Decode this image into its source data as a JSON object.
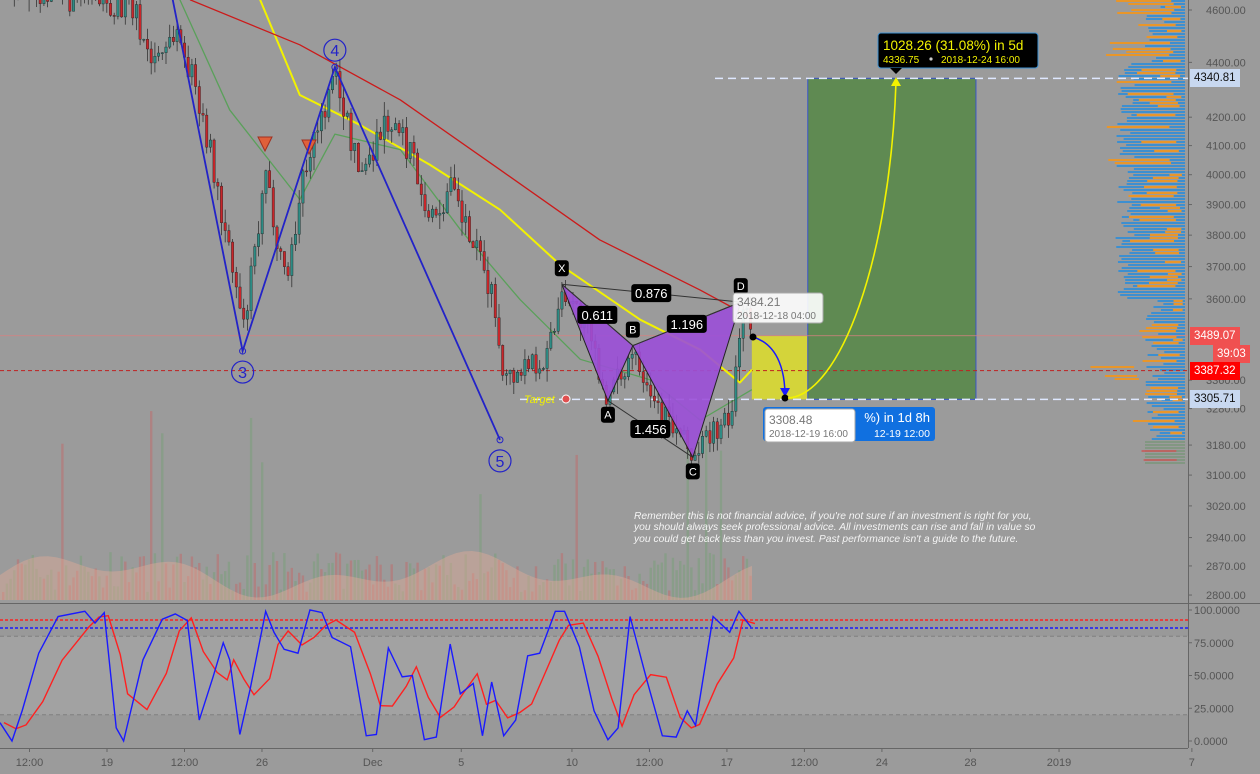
{
  "chart_data": {
    "type": "candlestick",
    "price_axis": {
      "scale": "log",
      "ticks": [
        "4600.00",
        "4400.00",
        "4200.00",
        "4100.00",
        "4000.00",
        "3900.00",
        "3800.00",
        "3700.00",
        "3600.00",
        "3360.00",
        "3280.00",
        "3180.00",
        "3100.00",
        "3020.00",
        "2940.00",
        "2870.00",
        "2800.00"
      ]
    },
    "time_axis": {
      "ticks": [
        {
          "label": "12:00",
          "date": "2018-11-15 12:00"
        },
        {
          "label": "19",
          "date": "2018-11-19 00:00"
        },
        {
          "label": "12:00",
          "date": "2018-11-22 12:00"
        },
        {
          "label": "26",
          "date": "2018-11-26 00:00"
        },
        {
          "label": "Dec",
          "date": "2018-12-01 00:00"
        },
        {
          "label": "5",
          "date": "2018-12-05 00:00"
        },
        {
          "label": "10",
          "date": "2018-12-10 00:00"
        },
        {
          "label": "12:00",
          "date": "2018-12-13 12:00"
        },
        {
          "label": "17",
          "date": "2018-12-17 00:00"
        },
        {
          "label": "12:00",
          "date": "2018-12-20 12:00"
        },
        {
          "label": "24",
          "date": "2018-12-24 00:00"
        },
        {
          "label": "28",
          "date": "2018-12-28 00:00"
        },
        {
          "label": "2019",
          "date": "2019-01-01 00:00"
        },
        {
          "label": "7",
          "date": "2019-01-07 00:00"
        }
      ]
    },
    "price_path": [
      [
        "2018-11-14 06:00",
        4700
      ],
      [
        "2018-11-15 12:00",
        4680
      ],
      [
        "2018-11-17 00:00",
        4650
      ],
      [
        "2018-11-20 01:00",
        4620
      ],
      [
        "2018-11-20 23:00",
        4408
      ],
      [
        "2018-11-22 02:00",
        4522
      ],
      [
        "2018-11-23 05:00",
        4244
      ],
      [
        "2018-11-24 08:00",
        3785
      ],
      [
        "2018-11-25 03:00",
        3507
      ],
      [
        "2018-11-26 03:00",
        3983
      ],
      [
        "2018-11-27 01:00",
        3659
      ],
      [
        "2018-11-27 23:00",
        4052
      ],
      [
        "2018-11-29 07:00",
        4352
      ],
      [
        "2018-11-30 08:00",
        4000
      ],
      [
        "2018-12-01 13:00",
        4191
      ],
      [
        "2018-12-02 16:00",
        4086
      ],
      [
        "2018-12-03 14:00",
        3850
      ],
      [
        "2018-12-04 12:00",
        3950
      ],
      [
        "2018-12-05 09:00",
        3785
      ],
      [
        "2018-12-06 07:00",
        3627
      ],
      [
        "2018-12-06 23:00",
        3361
      ],
      [
        "2018-12-08 03:00",
        3420
      ],
      [
        "2018-12-08 19:00",
        3420
      ],
      [
        "2018-12-09 13:00",
        3645
      ],
      [
        "2018-12-10 14:00",
        3507
      ],
      [
        "2018-12-11 15:00",
        3302
      ],
      [
        "2018-12-12 18:00",
        3460
      ],
      [
        "2018-12-13 23:00",
        3275
      ],
      [
        "2018-12-15 11:00",
        3147
      ],
      [
        "2018-12-16 08:00",
        3220
      ],
      [
        "2018-12-17 03:00",
        3236
      ],
      [
        "2018-12-17 15:00",
        3590
      ],
      [
        "2018-12-18 03:00",
        3489
      ]
    ],
    "moving_averages": [
      {
        "color": "#f2f200",
        "points": [
          [
            "2018-11-25 22:00",
            4640
          ],
          [
            "2018-11-27 17:00",
            4280
          ],
          [
            "2018-11-30 10:00",
            4173
          ],
          [
            "2018-12-03 14:00",
            4034
          ],
          [
            "2018-12-06 18:00",
            3883
          ],
          [
            "2018-12-09 11:00",
            3706
          ],
          [
            "2018-12-13 02:00",
            3537
          ],
          [
            "2018-12-15 19:00",
            3448
          ],
          [
            "2018-12-17 14:00",
            3353
          ],
          [
            "2018-12-18 03:00",
            3390
          ]
        ]
      },
      {
        "color": "#cc1a1a",
        "points": [
          [
            "2018-11-22 18:00",
            4640
          ],
          [
            "2018-11-27 17:00",
            4466
          ],
          [
            "2018-12-02 06:00",
            4262
          ],
          [
            "2018-12-06 18:00",
            4017
          ],
          [
            "2018-12-11 06:00",
            3785
          ],
          [
            "2018-12-15 19:00",
            3627
          ],
          [
            "2018-12-18 03:00",
            3542
          ]
        ]
      },
      {
        "color": "#5aa05a",
        "points": [
          [
            "2018-11-22 07:00",
            4640
          ],
          [
            "2018-11-24 13:00",
            4226
          ],
          [
            "2018-11-27 17:00",
            3917
          ],
          [
            "2018-11-29 07:00",
            4140
          ],
          [
            "2018-12-02 06:00",
            4086
          ],
          [
            "2018-12-04 23:00",
            3818
          ],
          [
            "2018-12-07 16:00",
            3597
          ],
          [
            "2018-12-10 09:00",
            3420
          ],
          [
            "2018-12-13 13:00",
            3361
          ],
          [
            "2018-12-15 19:00",
            3248
          ],
          [
            "2018-12-18 03:00",
            3333
          ]
        ]
      }
    ],
    "harmonic_pattern": {
      "color": "#9b4fd8",
      "points": [
        {
          "label": "X",
          "date": "2018-12-09 13:00",
          "price": 3645
        },
        {
          "label": "A",
          "date": "2018-12-11 15:00",
          "price": 3302
        },
        {
          "label": "B",
          "date": "2018-12-12 18:00",
          "price": 3460
        },
        {
          "label": "C",
          "date": "2018-12-15 11:00",
          "price": 3147
        },
        {
          "label": "D",
          "date": "2018-12-17 15:00",
          "price": 3590
        }
      ],
      "ratios": [
        {
          "value": "0.611",
          "from": "X",
          "to": "B"
        },
        {
          "value": "0.876",
          "from": "X",
          "to": "D"
        },
        {
          "value": "1.196",
          "from": "B",
          "to": "D"
        },
        {
          "value": "1.456",
          "from": "A",
          "to": "C"
        }
      ]
    },
    "elliott_wave": {
      "color": "#2323c8",
      "start": {
        "date": "2018-11-21 20:00",
        "price": 4700
      },
      "points": [
        {
          "label": "3",
          "date": "2018-11-25 03:00",
          "price": 3444
        },
        {
          "label": "4",
          "date": "2018-11-29 07:00",
          "price": 4382
        },
        {
          "label": "5",
          "date": "2018-12-06 18:00",
          "price": 3194
        }
      ]
    },
    "projection": {
      "entry": 3489.07,
      "target": 4340.81,
      "stop": 3305.71,
      "start_date": "2018-12-18 03:00",
      "mid_date": "2018-12-22 11:00",
      "end_date": "2018-12-30 23:00",
      "risk_color": "#d4d43a",
      "reward_color": "#5f8a52",
      "target_label": {
        "line1": "1028.26 (31.08%) in 5d",
        "line2_price": "4336.75",
        "line2_date": "2018-12-24  16:00"
      },
      "low_tooltip": {
        "price": "3308.48",
        "date": "2018-12-19 16:00"
      },
      "low_blue_label": {
        "line1": "%) in 1d 8h",
        "line2": "12-19  12:00"
      },
      "d_tooltip": {
        "price": "3484.21",
        "date": "2018-12-18 04:00"
      }
    },
    "stochastic": {
      "axis_ticks": [
        "100.0000",
        "75.0000",
        "50.0000",
        "25.0000",
        "0.0000"
      ],
      "upper_band": 80,
      "lower_band": 20,
      "red_level": 92.4,
      "blue_level": 86.3,
      "k_color": "#1a1aff",
      "d_color": "#ff2020",
      "k": [
        [
          "2018-11-14 04:00",
          14
        ],
        [
          "2018-11-14 17:00",
          0
        ],
        [
          "2018-11-15 04:00",
          23
        ],
        [
          "2018-11-15 22:00",
          67
        ],
        [
          "2018-11-16 19:00",
          95
        ],
        [
          "2018-11-18 00:00",
          99
        ],
        [
          "2018-11-18 11:00",
          90
        ],
        [
          "2018-11-18 21:00",
          98
        ],
        [
          "2018-11-19 10:00",
          10
        ],
        [
          "2018-11-19 18:00",
          0
        ],
        [
          "2018-11-20 15:00",
          62
        ],
        [
          "2018-11-21 12:00",
          93
        ],
        [
          "2018-11-22 02:00",
          97
        ],
        [
          "2018-11-22 15:00",
          92
        ],
        [
          "2018-11-23 04:00",
          16
        ],
        [
          "2018-11-23 19:00",
          49
        ],
        [
          "2018-11-24 06:00",
          75
        ],
        [
          "2018-11-24 13:00",
          62
        ],
        [
          "2018-11-25 00:00",
          5
        ],
        [
          "2018-11-25 11:00",
          39
        ],
        [
          "2018-11-26 04:00",
          99
        ],
        [
          "2018-11-26 13:00",
          83
        ],
        [
          "2018-11-27 00:00",
          70
        ],
        [
          "2018-11-27 15:00",
          67
        ],
        [
          "2018-11-28 04:00",
          100
        ],
        [
          "2018-11-28 17:00",
          98
        ],
        [
          "2018-11-29 04:00",
          79
        ],
        [
          "2018-11-30 00:00",
          72
        ],
        [
          "2018-11-30 17:00",
          4
        ],
        [
          "2018-12-01 04:00",
          5
        ],
        [
          "2018-12-01 17:00",
          71
        ],
        [
          "2018-12-02 08:00",
          49
        ],
        [
          "2018-12-02 19:00",
          50
        ],
        [
          "2018-12-03 08:00",
          1
        ],
        [
          "2018-12-03 21:00",
          3
        ],
        [
          "2018-12-04 12:00",
          74
        ],
        [
          "2018-12-04 23:00",
          36
        ],
        [
          "2018-12-05 13:00",
          44
        ],
        [
          "2018-12-05 23:00",
          4
        ],
        [
          "2018-12-06 09:00",
          45
        ],
        [
          "2018-12-06 22:00",
          4
        ],
        [
          "2018-12-07 11:00",
          16
        ],
        [
          "2018-12-08 00:00",
          65
        ],
        [
          "2018-12-08 13:00",
          67
        ],
        [
          "2018-12-09 06:00",
          99
        ],
        [
          "2018-12-09 16:00",
          99
        ],
        [
          "2018-12-10 08:00",
          72
        ],
        [
          "2018-12-11 00:00",
          23
        ],
        [
          "2018-12-11 15:00",
          1
        ],
        [
          "2018-12-12 02:00",
          10
        ],
        [
          "2018-12-12 15:00",
          95
        ],
        [
          "2018-12-13 09:00",
          47
        ],
        [
          "2018-12-14 02:00",
          4
        ],
        [
          "2018-12-14 17:00",
          3
        ],
        [
          "2018-12-15 05:00",
          23
        ],
        [
          "2018-12-15 14:00",
          12
        ],
        [
          "2018-12-16 09:00",
          95
        ],
        [
          "2018-12-17 03:00",
          83
        ],
        [
          "2018-12-17 13:00",
          99
        ],
        [
          "2018-12-18 02:00",
          87
        ]
      ]
    }
  },
  "price_badges": [
    {
      "value": "4340.81",
      "kind": "target"
    },
    {
      "value": "3489.07",
      "kind": "entry"
    },
    {
      "value": "39:03",
      "kind": "countdown"
    },
    {
      "value": "3387.32",
      "kind": "last"
    },
    {
      "value": "3305.71",
      "kind": "stop"
    }
  ],
  "target_marker_label": "Target",
  "disclaimer": "Remember this is not financial advice, if you're not sure if an investment is right for you, you should always seek professional advice. All investments can rise and fall in value so you could get back less than you invest. Past performance isn't a guide to the future.",
  "colors": {
    "background": "#9b9b9b",
    "up_candle": "#2e8b84",
    "down_candle": "#c8262a",
    "volume_profile_up": "#3d8fd0",
    "volume_profile_down": "#e8962a"
  }
}
